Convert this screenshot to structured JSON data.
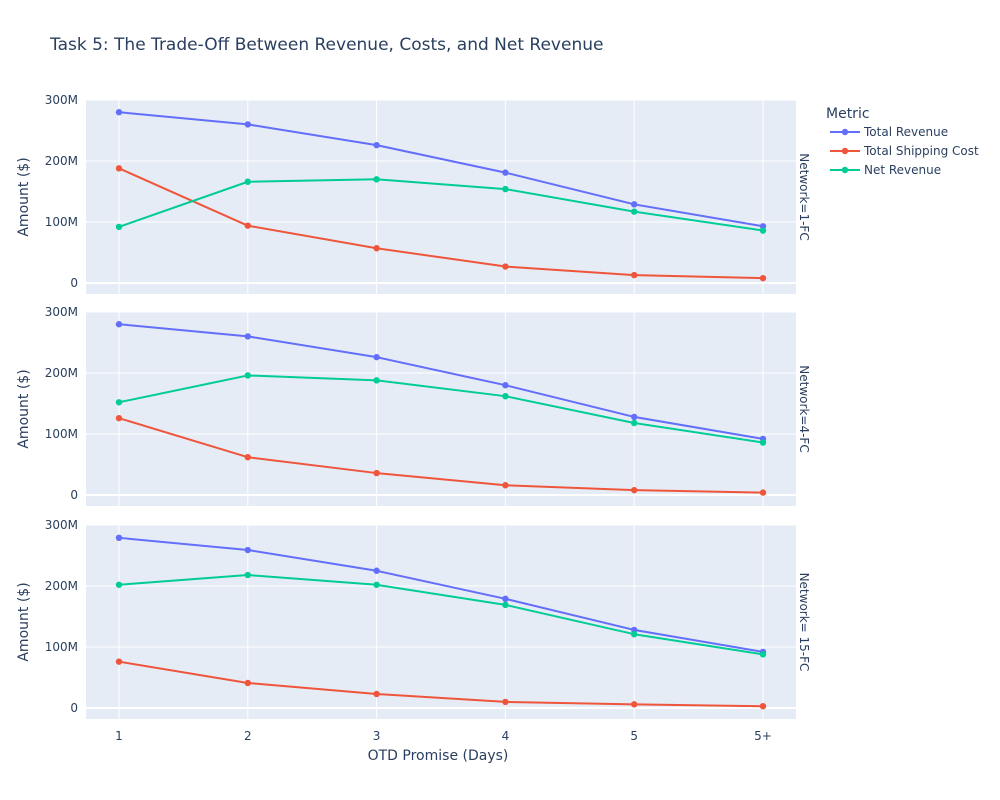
{
  "chart_data": {
    "type": "line",
    "title": "Task 5: The Trade-Off Between Revenue, Costs, and Net Revenue",
    "xlabel": "OTD Promise (Days)",
    "ylabel": "Amount ($)",
    "categories": [
      "1",
      "2",
      "3",
      "4",
      "5",
      "5+"
    ],
    "yticks": [
      "0",
      "100M",
      "200M",
      "300M"
    ],
    "ylim": [
      0,
      300000000
    ],
    "grid": true,
    "legend": {
      "title": "Metric",
      "placement": "top-right",
      "entries": [
        "Total Revenue",
        "Total Shipping Cost",
        "Net Revenue"
      ]
    },
    "colors": {
      "Total Revenue": "#636efa",
      "Total Shipping Cost": "#ef553b",
      "Net Revenue": "#00cc96",
      "plot_bg": "#e5ecf6",
      "text": "#2a3f5f"
    },
    "facets": [
      {
        "label": "Network=1-FC",
        "series": [
          {
            "name": "Total Revenue",
            "values": [
              280000000,
              260000000,
              226000000,
              181000000,
              129000000,
              93000000
            ]
          },
          {
            "name": "Total Shipping Cost",
            "values": [
              188000000,
              94000000,
              57000000,
              27000000,
              13000000,
              8000000
            ]
          },
          {
            "name": "Net Revenue",
            "values": [
              92000000,
              166000000,
              170000000,
              154000000,
              117000000,
              86000000
            ]
          }
        ]
      },
      {
        "label": "Network=4-FC",
        "series": [
          {
            "name": "Total Revenue",
            "values": [
              280000000,
              260000000,
              226000000,
              180000000,
              128000000,
              92000000
            ]
          },
          {
            "name": "Total Shipping Cost",
            "values": [
              126000000,
              62000000,
              36000000,
              16000000,
              8000000,
              4000000
            ]
          },
          {
            "name": "Net Revenue",
            "values": [
              152000000,
              196000000,
              188000000,
              162000000,
              118000000,
              86000000
            ]
          }
        ]
      },
      {
        "label": "Network= 15-FC",
        "series": [
          {
            "name": "Total Revenue",
            "values": [
              279000000,
              259000000,
              225000000,
              179000000,
              128000000,
              92000000
            ]
          },
          {
            "name": "Total Shipping Cost",
            "values": [
              76000000,
              41000000,
              23000000,
              10000000,
              6000000,
              3000000
            ]
          },
          {
            "name": "Net Revenue",
            "values": [
              202000000,
              218000000,
              202000000,
              169000000,
              121000000,
              88000000
            ]
          }
        ]
      }
    ]
  }
}
